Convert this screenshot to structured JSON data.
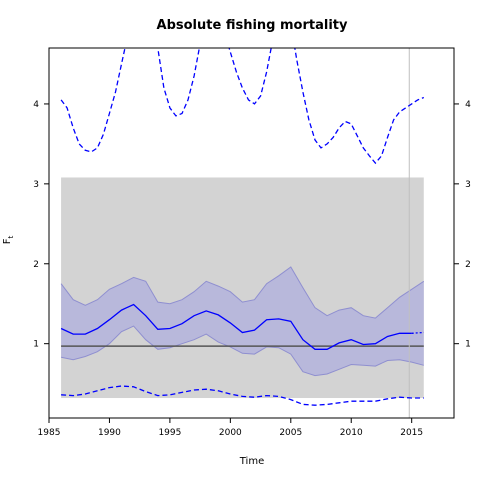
{
  "chart_data": {
    "type": "line",
    "title": "Absolute fishing mortality",
    "xlabel": "Time",
    "ylabel": "F",
    "ylabel_sub": "t",
    "xlim": [
      1985,
      2018.5
    ],
    "ylim": [
      0.07,
      4.7
    ],
    "x_ticks": [
      1985,
      1990,
      1995,
      2000,
      2005,
      2010,
      2015
    ],
    "y_ticks": [
      1,
      2,
      3,
      4
    ],
    "y_ticks_right": [
      1,
      2,
      3,
      4
    ],
    "colors": {
      "gray_band": "#d3d3d3",
      "ci_fill": "#b3b3dc",
      "ci_edge": "#8f8fd0",
      "series": "#0000ff",
      "reference": "#555555",
      "vline": "#c0c0c0"
    },
    "gray_band": {
      "x": [
        1986,
        2016
      ],
      "y": [
        0.32,
        3.08
      ]
    },
    "reference_line": {
      "y": 0.97,
      "x": [
        1986,
        2016
      ]
    },
    "vertical_line": {
      "x": 2014.8
    },
    "series": [
      {
        "role": "estimate",
        "style": "solid",
        "x": [
          1986,
          1987,
          1988,
          1989,
          1990,
          1991,
          1992,
          1993,
          1994,
          1995,
          1996,
          1997,
          1998,
          1999,
          2000,
          2001,
          2002,
          2003,
          2004,
          2005,
          2006,
          2007,
          2008,
          2009,
          2010,
          2011,
          2012,
          2013,
          2014,
          2015
        ],
        "y": [
          1.19,
          1.12,
          1.12,
          1.19,
          1.3,
          1.42,
          1.49,
          1.35,
          1.18,
          1.19,
          1.25,
          1.35,
          1.41,
          1.36,
          1.26,
          1.14,
          1.17,
          1.3,
          1.31,
          1.28,
          1.05,
          0.93,
          0.93,
          1.01,
          1.05,
          0.99,
          1.0,
          1.09,
          1.13,
          1.13
        ]
      },
      {
        "role": "estimate-projection",
        "style": "dotted",
        "x": [
          2015,
          2016
        ],
        "y": [
          1.13,
          1.14
        ]
      },
      {
        "role": "ci-upper",
        "style": "solid",
        "x": [
          1986,
          1987,
          1988,
          1989,
          1990,
          1991,
          1992,
          1993,
          1994,
          1995,
          1996,
          1997,
          1998,
          1999,
          2000,
          2001,
          2002,
          2003,
          2004,
          2005,
          2006,
          2007,
          2008,
          2009,
          2010,
          2011,
          2012,
          2013,
          2014,
          2015,
          2016
        ],
        "y": [
          1.75,
          1.55,
          1.48,
          1.55,
          1.68,
          1.75,
          1.83,
          1.78,
          1.52,
          1.5,
          1.55,
          1.65,
          1.78,
          1.72,
          1.65,
          1.52,
          1.55,
          1.75,
          1.85,
          1.96,
          1.7,
          1.45,
          1.35,
          1.42,
          1.45,
          1.35,
          1.32,
          1.45,
          1.58,
          1.68,
          1.78
        ]
      },
      {
        "role": "ci-lower",
        "style": "solid",
        "x": [
          1986,
          1987,
          1988,
          1989,
          1990,
          1991,
          1992,
          1993,
          1994,
          1995,
          1996,
          1997,
          1998,
          1999,
          2000,
          2001,
          2002,
          2003,
          2004,
          2005,
          2006,
          2007,
          2008,
          2009,
          2010,
          2011,
          2012,
          2013,
          2014,
          2015,
          2016
        ],
        "y": [
          0.83,
          0.8,
          0.84,
          0.9,
          1.0,
          1.15,
          1.22,
          1.05,
          0.93,
          0.95,
          1.0,
          1.05,
          1.12,
          1.02,
          0.96,
          0.88,
          0.87,
          0.96,
          0.95,
          0.87,
          0.65,
          0.6,
          0.62,
          0.68,
          0.74,
          0.73,
          0.72,
          0.79,
          0.8,
          0.77,
          0.73
        ]
      },
      {
        "role": "dashed-upper",
        "style": "dashed",
        "x": [
          1986,
          1986.5,
          1987,
          1987.5,
          1988,
          1988.5,
          1989,
          1989.5,
          1990,
          1990.5,
          1991,
          1991.5,
          1992,
          1992.5,
          1993,
          1993.5,
          1994,
          1994.5,
          1995,
          1995.5,
          1996,
          1996.5,
          1997,
          1997.5,
          1998,
          1998.5,
          1999,
          1999.5,
          2000,
          2000.5,
          2001,
          2001.5,
          2002,
          2002.5,
          2003,
          2003.5,
          2004,
          2004.5,
          2005,
          2005.5,
          2006,
          2006.5,
          2007,
          2007.5,
          2008,
          2008.5,
          2009,
          2009.5,
          2010,
          2010.5,
          2011,
          2011.5,
          2012,
          2012.5,
          2013,
          2013.5,
          2014,
          2014.5,
          2015,
          2015.5,
          2016
        ],
        "y": [
          4.05,
          3.95,
          3.7,
          3.5,
          3.42,
          3.4,
          3.45,
          3.62,
          3.88,
          4.15,
          4.5,
          4.85,
          5.2,
          5.4,
          5.35,
          5.1,
          4.7,
          4.2,
          3.95,
          3.85,
          3.88,
          4.05,
          4.35,
          4.75,
          5.2,
          5.4,
          5.3,
          4.9,
          4.65,
          4.4,
          4.2,
          4.05,
          4.0,
          4.1,
          4.4,
          4.8,
          5.1,
          5.15,
          5.0,
          4.55,
          4.15,
          3.8,
          3.55,
          3.45,
          3.5,
          3.58,
          3.7,
          3.78,
          3.75,
          3.6,
          3.45,
          3.35,
          3.26,
          3.35,
          3.58,
          3.8,
          3.9,
          3.95,
          4.0,
          4.05,
          4.08
        ]
      },
      {
        "role": "dashed-lower",
        "style": "dashed",
        "x": [
          1986,
          1987,
          1988,
          1989,
          1990,
          1991,
          1992,
          1993,
          1994,
          1995,
          1996,
          1997,
          1998,
          1999,
          2000,
          2001,
          2002,
          2003,
          2004,
          2005,
          2006,
          2007,
          2008,
          2009,
          2010,
          2011,
          2012,
          2013,
          2014,
          2015,
          2016
        ],
        "y": [
          0.36,
          0.35,
          0.37,
          0.41,
          0.45,
          0.47,
          0.46,
          0.4,
          0.35,
          0.36,
          0.39,
          0.42,
          0.43,
          0.41,
          0.37,
          0.34,
          0.33,
          0.35,
          0.34,
          0.3,
          0.24,
          0.23,
          0.24,
          0.26,
          0.28,
          0.28,
          0.28,
          0.31,
          0.33,
          0.32,
          0.32
        ]
      }
    ]
  }
}
